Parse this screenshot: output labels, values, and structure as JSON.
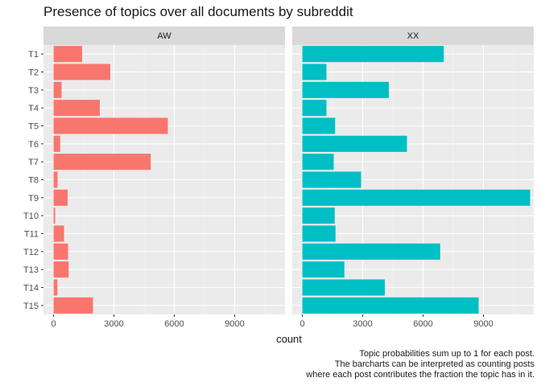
{
  "chart_data": {
    "type": "bar",
    "orientation": "horizontal",
    "title": "Presence of topics over all documents by subreddit",
    "xlabel": "count",
    "ylabel": "",
    "categories": [
      "T1",
      "T2",
      "T3",
      "T4",
      "T5",
      "T6",
      "T7",
      "T8",
      "T9",
      "T10",
      "T11",
      "T12",
      "T13",
      "T14",
      "T15"
    ],
    "xlim": [
      -500,
      11500
    ],
    "xticks": [
      0,
      3000,
      6000,
      9000
    ],
    "xtick_labels": [
      "0",
      "3000",
      "6000",
      "9000"
    ],
    "facets": [
      {
        "name": "AW",
        "color": "#F8766D",
        "values": [
          1420,
          2820,
          400,
          2300,
          5680,
          330,
          4830,
          200,
          700,
          80,
          520,
          720,
          750,
          190,
          1960
        ]
      },
      {
        "name": "XX",
        "color": "#00BFC4",
        "values": [
          7030,
          1200,
          4300,
          1200,
          1630,
          5200,
          1560,
          2920,
          11320,
          1610,
          1650,
          6850,
          2090,
          4100,
          8760
        ]
      }
    ],
    "grid": true,
    "legend": "none",
    "caption": [
      "Topic probabilities sum up to 1 for each post.",
      "The barcharts can be interpreted as counting posts",
      "where each post contributes the fraction the topic has in it."
    ]
  }
}
